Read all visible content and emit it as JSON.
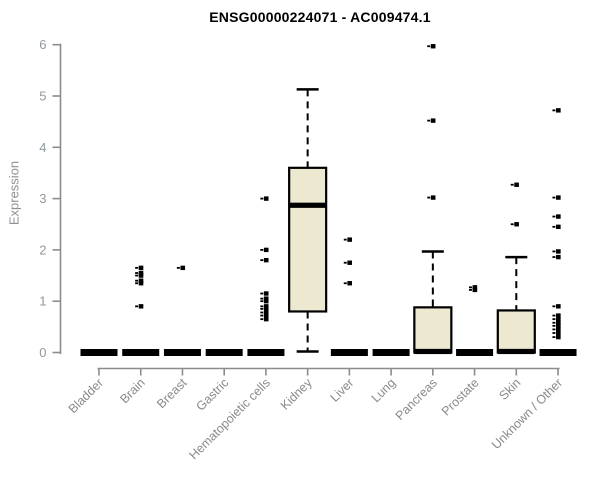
{
  "chart_data": {
    "type": "boxplot",
    "title": "ENSG00000224071 - AC009474.1",
    "ylabel": "Expression",
    "xlabel": "",
    "ylim": [
      0,
      6
    ],
    "yticks": [
      0,
      1,
      2,
      3,
      4,
      5,
      6
    ],
    "grid": false,
    "legend": null,
    "categories": [
      "Bladder",
      "Brain",
      "Breast",
      "Gastric",
      "Hematopoietic cells",
      "Kidney",
      "Liver",
      "Lung",
      "Pancreas",
      "Prostate",
      "Skin",
      "Unknown / Other"
    ],
    "series": [
      {
        "category": "Bladder",
        "low": 0,
        "q1": 0,
        "median": 0,
        "q3": 0,
        "high": 0,
        "outliers": []
      },
      {
        "category": "Brain",
        "low": 0,
        "q1": 0,
        "median": 0,
        "q3": 0,
        "high": 0,
        "outliers": [
          1.65,
          1.55,
          1.5,
          1.4,
          1.35,
          0.9
        ]
      },
      {
        "category": "Breast",
        "low": 0,
        "q1": 0,
        "median": 0,
        "q3": 0,
        "high": 0,
        "outliers": [
          1.65
        ]
      },
      {
        "category": "Gastric",
        "low": 0,
        "q1": 0,
        "median": 0,
        "q3": 0,
        "high": 0,
        "outliers": []
      },
      {
        "category": "Hematopoietic cells",
        "low": 0,
        "q1": 0,
        "median": 0,
        "q3": 0,
        "high": 0,
        "outliers": [
          3.0,
          2.0,
          1.8,
          1.15,
          1.05,
          1.0,
          0.9,
          0.85,
          0.78,
          0.72,
          0.65
        ]
      },
      {
        "category": "Kidney",
        "low": 0.02,
        "q1": 0.8,
        "median": 2.87,
        "q3": 3.6,
        "high": 5.13,
        "outliers": []
      },
      {
        "category": "Liver",
        "low": 0,
        "q1": 0,
        "median": 0,
        "q3": 0,
        "high": 0,
        "outliers": [
          2.2,
          1.75,
          1.35
        ]
      },
      {
        "category": "Lung",
        "low": 0,
        "q1": 0,
        "median": 0,
        "q3": 0,
        "high": 0,
        "outliers": []
      },
      {
        "category": "Pancreas",
        "low": 0,
        "q1": 0,
        "median": 0.02,
        "q3": 0.88,
        "high": 1.97,
        "outliers": [
          5.97,
          4.52,
          3.02
        ]
      },
      {
        "category": "Prostate",
        "low": 0,
        "q1": 0,
        "median": 0,
        "q3": 0,
        "high": 0,
        "outliers": [
          1.27,
          1.22
        ]
      },
      {
        "category": "Skin",
        "low": 0,
        "q1": 0,
        "median": 0.02,
        "q3": 0.82,
        "high": 1.86,
        "outliers": [
          3.27,
          2.5
        ]
      },
      {
        "category": "Unknown / Other",
        "low": 0,
        "q1": 0,
        "median": 0,
        "q3": 0,
        "high": 0,
        "outliers": [
          4.72,
          3.02,
          2.65,
          2.45,
          1.97,
          1.86,
          0.9,
          0.72,
          0.65,
          0.58,
          0.52,
          0.45,
          0.38,
          0.3
        ]
      }
    ],
    "colors": {
      "box_fill": "#EDE8D0",
      "box_stroke": "#000000",
      "median": "#000000",
      "whisker": "#000000",
      "outlier": "#000000",
      "axis": "#8C8C8C",
      "y_tick_label": "#8f98a0",
      "x_tick_label": "#8a8a8a",
      "title": "#000000",
      "background": "#ffffff"
    }
  }
}
